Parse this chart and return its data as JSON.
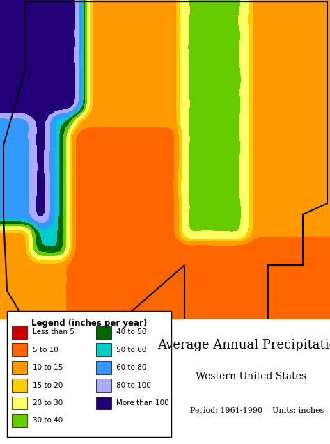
{
  "title": "Average Annual Precipitation",
  "subtitle": "Western United States",
  "period_text": "Period: 1961-1990    Units: inches",
  "legend_title": "Legend (inches per year)",
  "legend_items": [
    {
      "label": "Less than 5",
      "color": "#cc0000"
    },
    {
      "label": "5 to 10",
      "color": "#ff6600"
    },
    {
      "label": "10 to 15",
      "color": "#ff9900"
    },
    {
      "label": "15 to 20",
      "color": "#ffcc00"
    },
    {
      "label": "20 to 30",
      "color": "#ffff66"
    },
    {
      "label": "30 to 40",
      "color": "#66cc00"
    },
    {
      "label": "40 to 50",
      "color": "#006600"
    },
    {
      "label": "50 to 60",
      "color": "#00cccc"
    },
    {
      "label": "60 to 80",
      "color": "#3399ff"
    },
    {
      "label": "80 to 100",
      "color": "#aaaaff"
    },
    {
      "label": "More than 100",
      "color": "#220077"
    }
  ],
  "bg_color": "#ffffff",
  "map_bg": "#f5f0e8",
  "figsize": [
    4.74,
    6.38
  ],
  "dpi": 100
}
